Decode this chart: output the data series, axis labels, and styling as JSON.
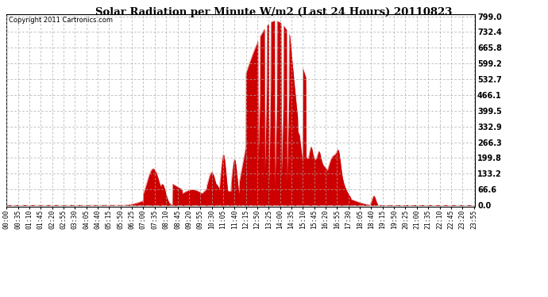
{
  "title": "Solar Radiation per Minute W/m2 (Last 24 Hours) 20110823",
  "copyright": "Copyright 2011 Cartronics.com",
  "bar_color": "#CC0000",
  "background_color": "#FFFFFF",
  "plot_bg_color": "#FFFFFF",
  "grid_color": "#AAAAAA",
  "ymin": 0.0,
  "ymax": 799.0,
  "yticks": [
    0.0,
    66.6,
    133.2,
    199.8,
    266.3,
    332.9,
    399.5,
    466.1,
    532.7,
    599.2,
    665.8,
    732.4,
    799.0
  ],
  "x_tick_labels": [
    "00:00",
    "00:35",
    "01:10",
    "01:45",
    "02:20",
    "02:55",
    "03:30",
    "04:05",
    "04:40",
    "05:15",
    "05:50",
    "06:25",
    "07:00",
    "07:35",
    "08:10",
    "08:45",
    "09:20",
    "09:55",
    "10:30",
    "11:05",
    "11:40",
    "12:15",
    "12:50",
    "13:25",
    "14:00",
    "14:35",
    "15:10",
    "15:45",
    "16:20",
    "16:55",
    "17:30",
    "18:05",
    "18:40",
    "19:15",
    "19:50",
    "20:25",
    "21:00",
    "21:35",
    "22:10",
    "22:45",
    "23:20",
    "23:55"
  ],
  "n_minutes": 1440
}
